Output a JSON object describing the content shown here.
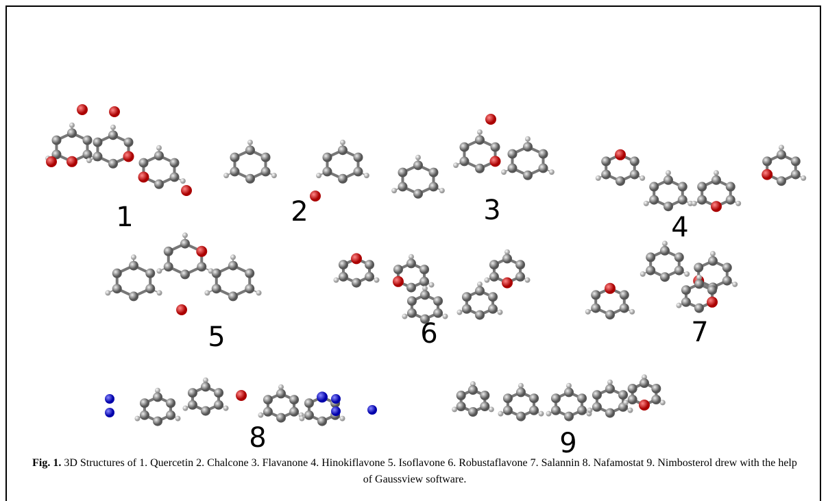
{
  "figure": {
    "labels": [
      "1",
      "2",
      "3",
      "4",
      "5",
      "6",
      "7",
      "8",
      "9"
    ],
    "caption": {
      "label": "Fig. 1.",
      "text": "3D Structures of 1. Quercetin 2. Chalcone 3. Flavanone 4. Hinokiflavone 5. Isoflavone 6. Robustaflavone 7. Salannin 8. Nafamostat 9. Nimbosterol  drew with the help of Gaussview software."
    }
  }
}
